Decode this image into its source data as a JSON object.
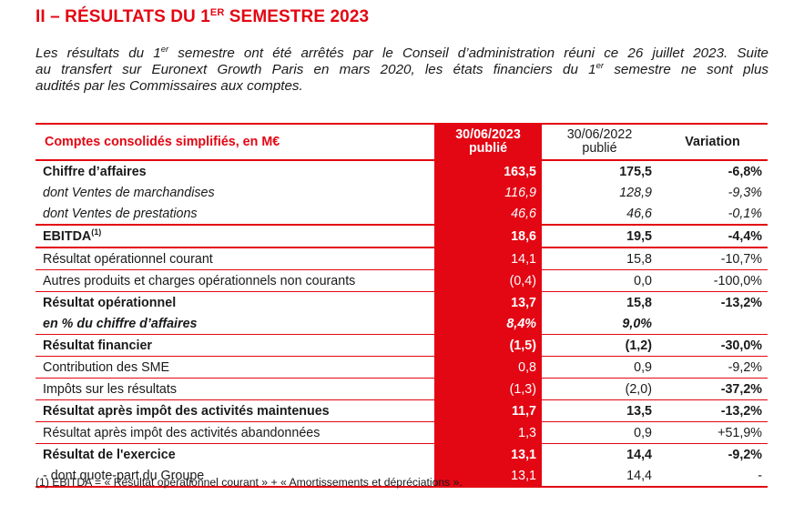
{
  "title": {
    "prefix": "II – RÉSULTATS DU 1",
    "sup": "ER",
    "suffix": " SEMESTRE 2023"
  },
  "intro": {
    "l1a": "Les résultats du 1",
    "l1sup": "er",
    "l1b": " semestre ont été arrêtés par le Conseil d’administration réuni ce 26 juillet 2023. Suite",
    "l2a": "au transfert sur Euronext Growth Paris en mars 2020, les états financiers du 1",
    "l2sup": "er",
    "l2b": " semestre ne sont plus",
    "l3": "audités par les Commissaires aux comptes."
  },
  "table": {
    "header": {
      "label": "Comptes consolidés simplifiés, en M€",
      "col1_date": "30/06/2023",
      "col1_sub": "publié",
      "col2_date": "30/06/2022",
      "col2_sub": "publié",
      "col3": "Variation"
    },
    "rows": [
      {
        "label": "Chiffre d’affaires",
        "v1": "163,5",
        "v2": "175,5",
        "var": "-6,8%"
      },
      {
        "label": "dont Ventes de marchandises",
        "v1": "116,9",
        "v2": "128,9",
        "var": "-9,3%"
      },
      {
        "label": "dont Ventes de prestations",
        "v1": "46,6",
        "v2": "46,6",
        "var": "-0,1%"
      },
      {
        "label": "EBITDA",
        "sup": "(1)",
        "v1": "18,6",
        "v2": "19,5",
        "var": "-4,4%"
      },
      {
        "label": "Résultat opérationnel courant",
        "v1": "14,1",
        "v2": "15,8",
        "var": "-10,7%"
      },
      {
        "label": "Autres produits et charges opérationnels non courants",
        "v1": "(0,4)",
        "v2": "0,0",
        "var": "-100,0%"
      },
      {
        "label": "Résultat opérationnel",
        "v1": "13,7",
        "v2": "15,8",
        "var": "-13,2%"
      },
      {
        "label": "en % du chiffre d’affaires",
        "v1": "8,4%",
        "v2": "9,0%",
        "var": ""
      },
      {
        "label": "Résultat financier",
        "v1": "(1,5)",
        "v2": "(1,2)",
        "var": "-30,0%"
      },
      {
        "label": "Contribution des SME",
        "v1": "0,8",
        "v2": "0,9",
        "var": "-9,2%"
      },
      {
        "label": "Impôts sur les résultats",
        "v1": "(1,3)",
        "v2": "(2,0)",
        "var": "-37,2%"
      },
      {
        "label": "Résultat après impôt des activités maintenues",
        "v1": "11,7",
        "v2": "13,5",
        "var": "-13,2%"
      },
      {
        "label": "Résultat après impôt des activités abandonnées",
        "v1": "1,3",
        "v2": "0,9",
        "var": "+51,9%"
      },
      {
        "label": "Résultat de l'exercice",
        "v1": "13,1",
        "v2": "14,4",
        "var": "-9,2%"
      },
      {
        "label": "- dont quote-part du Groupe",
        "v1": "13,1",
        "v2": "14,4",
        "var": "-"
      }
    ]
  },
  "footnote": {
    "marker": "(1)",
    "text": " EBITDA = « Résultat opérationnel courant » + « Amortissements et dépréciations »."
  },
  "colors": {
    "accent": "#e30613",
    "text": "#1a1a1a",
    "highlight_text": "#ffffff"
  }
}
